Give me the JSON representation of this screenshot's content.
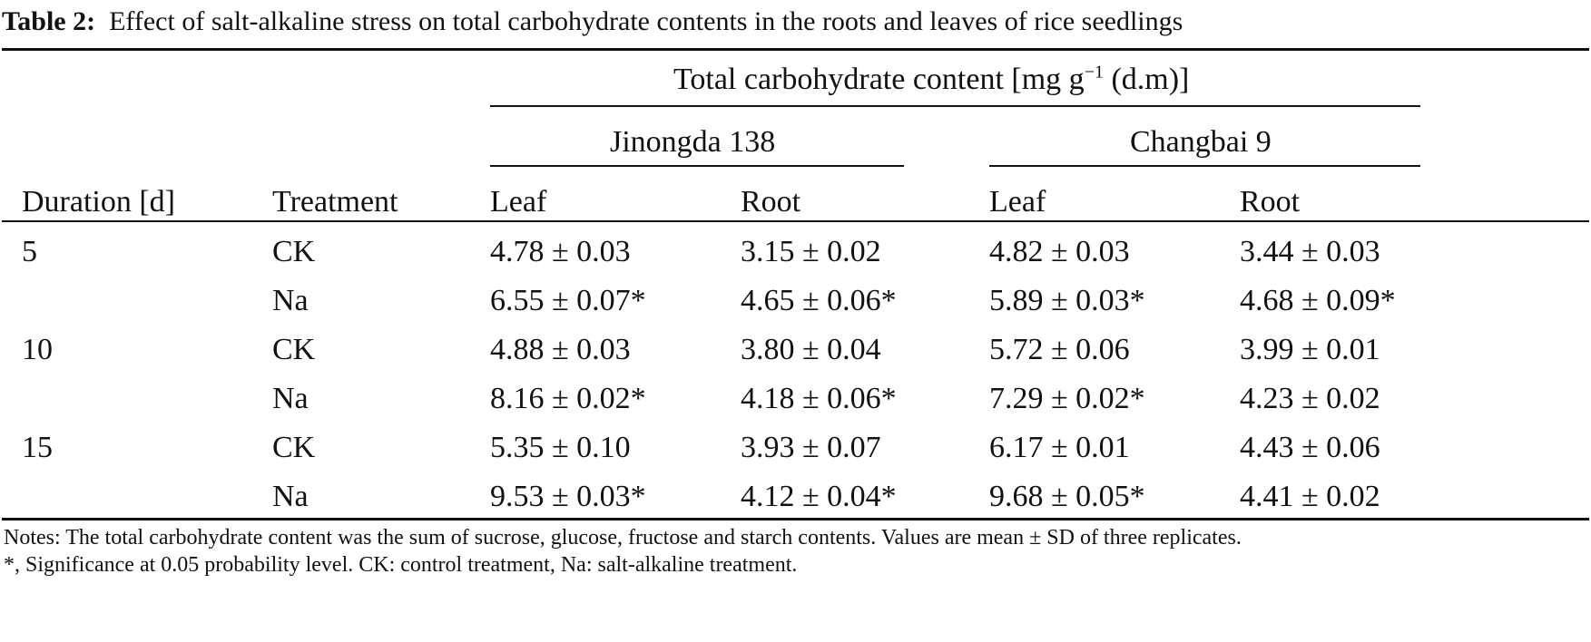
{
  "caption": {
    "label": "Table 2:",
    "text": "Effect of salt-alkaline stress on total carbohydrate contents in the roots and leaves of rice seedlings"
  },
  "header": {
    "group": "Total carbohydrate content [mg g",
    "group_sup": "−1",
    "group_tail": " (d.m)]",
    "variety1": "Jinongda 138",
    "variety2": "Changbai 9",
    "columns": [
      "Duration [d]",
      "Treatment",
      "Leaf",
      "Root",
      "Leaf",
      "Root"
    ]
  },
  "rows": [
    {
      "duration": "5",
      "treatment": "CK",
      "j_leaf": "4.78 ± 0.03",
      "j_root": "3.15 ± 0.02",
      "c_leaf": "4.82 ± 0.03",
      "c_root": "3.44 ± 0.03"
    },
    {
      "duration": "",
      "treatment": "Na",
      "j_leaf": "6.55 ± 0.07*",
      "j_root": "4.65 ± 0.06*",
      "c_leaf": "5.89 ± 0.03*",
      "c_root": "4.68 ± 0.09*"
    },
    {
      "duration": "10",
      "treatment": "CK",
      "j_leaf": "4.88 ± 0.03",
      "j_root": "3.80 ± 0.04",
      "c_leaf": "5.72 ± 0.06",
      "c_root": "3.99 ± 0.01"
    },
    {
      "duration": "",
      "treatment": "Na",
      "j_leaf": "8.16 ± 0.02*",
      "j_root": "4.18 ± 0.06*",
      "c_leaf": "7.29 ± 0.02*",
      "c_root": "4.23 ± 0.02"
    },
    {
      "duration": "15",
      "treatment": "CK",
      "j_leaf": "5.35 ± 0.10",
      "j_root": "3.93 ± 0.07",
      "c_leaf": "6.17 ± 0.01",
      "c_root": "4.43 ± 0.06"
    },
    {
      "duration": "",
      "treatment": "Na",
      "j_leaf": "9.53 ± 0.03*",
      "j_root": "4.12 ± 0.04*",
      "c_leaf": "9.68 ± 0.05*",
      "c_root": "4.41 ± 0.02"
    }
  ],
  "notes": {
    "line1": "Notes: The total carbohydrate content was the sum of sucrose, glucose, fructose and starch contents. Values are mean ± SD of three replicates.",
    "line2": "*, Significance at 0.05 probability level. CK: control treatment, Na: salt-alkaline treatment."
  }
}
